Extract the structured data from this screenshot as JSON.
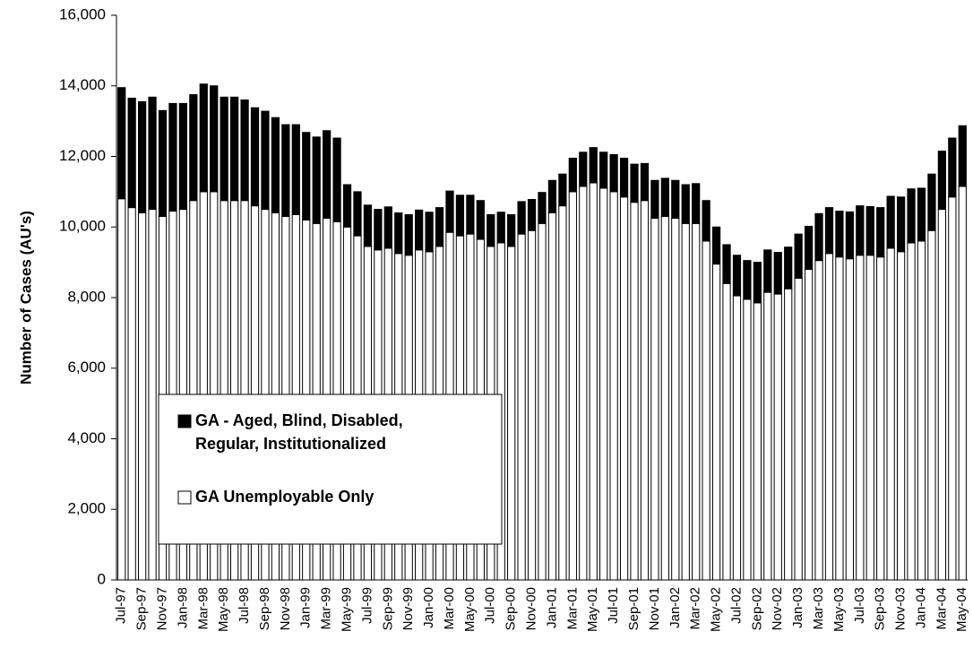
{
  "chart_data": {
    "type": "stacked_bar",
    "y_label": "Number of Cases (AU's)",
    "categories": [
      "Jul-97",
      null,
      "Sep-97",
      null,
      "Nov-97",
      null,
      "Jan-98",
      null,
      "Mar-98",
      null,
      "May-98",
      null,
      "Jul-98",
      null,
      "Sep-98",
      null,
      "Nov-98",
      null,
      "Jan-99",
      null,
      "Mar-99",
      null,
      "May-99",
      null,
      "Jul-99",
      null,
      "Sep-99",
      null,
      "Nov-99",
      null,
      "Jan-00",
      null,
      "Mar-00",
      null,
      "May-00",
      null,
      "Jul-00",
      null,
      "Sep-00",
      null,
      "Nov-00",
      null,
      "Jan-01",
      null,
      "Mar-01",
      null,
      "May-01",
      null,
      "Jul-01",
      null,
      "Sep-01",
      null,
      "Nov-01",
      null,
      "Jan-02",
      null,
      "Mar-02",
      null,
      "May-02",
      null,
      "Jul-02",
      null,
      "Sep-02",
      null,
      "Nov-02",
      null,
      "Jan-03",
      null,
      "Mar-03",
      null,
      "May-03",
      null,
      "Jul-03",
      null,
      "Sep-03",
      null,
      "Nov-03",
      null,
      "Jan-04",
      null,
      "Mar-04",
      null,
      "May-04"
    ],
    "series": [
      {
        "name": "GA Unemployable Only",
        "color": "#ffffff",
        "values": [
          10800,
          10550,
          10400,
          10500,
          10300,
          10450,
          10500,
          10750,
          11000,
          11000,
          10750,
          10750,
          10750,
          10600,
          10500,
          10400,
          10300,
          10350,
          10200,
          10100,
          10250,
          10150,
          10000,
          9750,
          9450,
          9350,
          9400,
          9250,
          9200,
          9350,
          9300,
          9450,
          9850,
          9750,
          9800,
          9650,
          9450,
          9550,
          9450,
          9800,
          9900,
          10100,
          10400,
          10600,
          11000,
          11150,
          11250,
          11100,
          11000,
          10850,
          10700,
          10750,
          10250,
          10300,
          10250,
          10100,
          10100,
          9600,
          8950,
          8400,
          8050,
          7950,
          7850,
          8150,
          8100,
          8250,
          8550,
          8800,
          9050,
          9250,
          9150,
          9100,
          9200,
          9200,
          9150,
          9400,
          9300,
          9550,
          9600,
          9900,
          10500,
          10850,
          11150
        ]
      },
      {
        "name": "GA - Aged, Blind, Disabled, Regular, Institutionalized",
        "color": "#000000",
        "values": [
          3150,
          3100,
          3150,
          3180,
          3000,
          3050,
          3000,
          3000,
          3050,
          3000,
          2930,
          2930,
          2850,
          2780,
          2780,
          2700,
          2600,
          2550,
          2480,
          2450,
          2480,
          2370,
          1200,
          1250,
          1170,
          1150,
          1170,
          1150,
          1150,
          1130,
          1120,
          1100,
          1170,
          1150,
          1100,
          1100,
          900,
          870,
          900,
          920,
          880,
          880,
          920,
          900,
          950,
          970,
          1000,
          1020,
          1050,
          1100,
          1080,
          1050,
          1070,
          1080,
          1070,
          1100,
          1130,
          1150,
          1050,
          1100,
          1150,
          1100,
          1150,
          1200,
          1180,
          1180,
          1250,
          1220,
          1330,
          1300,
          1300,
          1330,
          1400,
          1380,
          1400,
          1470,
          1550,
          1530,
          1500,
          1600,
          1650,
          1670,
          1720
        ]
      }
    ],
    "ylim": [
      0,
      16000
    ],
    "yticks": [
      0,
      {
        "value": 2000,
        "label": "2,000"
      },
      {
        "value": 4000,
        "label": "4,000"
      },
      {
        "value": 6000,
        "label": "6,000"
      },
      {
        "value": 8000,
        "label": "8,000"
      },
      {
        "value": 10000,
        "label": "10,000"
      },
      {
        "value": 12000,
        "label": "12,000"
      },
      {
        "value": 14000,
        "label": "14,000"
      },
      {
        "value": 16000,
        "label": "16,000"
      }
    ]
  }
}
